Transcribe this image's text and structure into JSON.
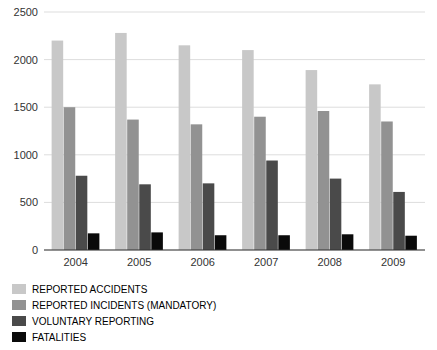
{
  "chart_data": {
    "type": "bar",
    "categories": [
      "2004",
      "2005",
      "2006",
      "2007",
      "2008",
      "2009"
    ],
    "series": [
      {
        "name": "REPORTED ACCIDENTS",
        "color": "#c8c8c8",
        "values": [
          2200,
          2280,
          2150,
          2100,
          1890,
          1740
        ]
      },
      {
        "name": "REPORTED INCIDENTS (MANDATORY)",
        "color": "#929292",
        "values": [
          1500,
          1370,
          1320,
          1400,
          1460,
          1350
        ]
      },
      {
        "name": "VOLUNTARY REPORTING",
        "color": "#4a4a4a",
        "values": [
          780,
          690,
          700,
          940,
          750,
          610
        ]
      },
      {
        "name": "FATALITIES",
        "color": "#0a0a0a",
        "values": [
          175,
          185,
          155,
          155,
          165,
          150
        ]
      }
    ],
    "ylim": [
      0,
      2500
    ],
    "yticks": [
      0,
      500,
      1000,
      1500,
      2000,
      2500
    ],
    "grid": true,
    "legend": "bottom"
  }
}
